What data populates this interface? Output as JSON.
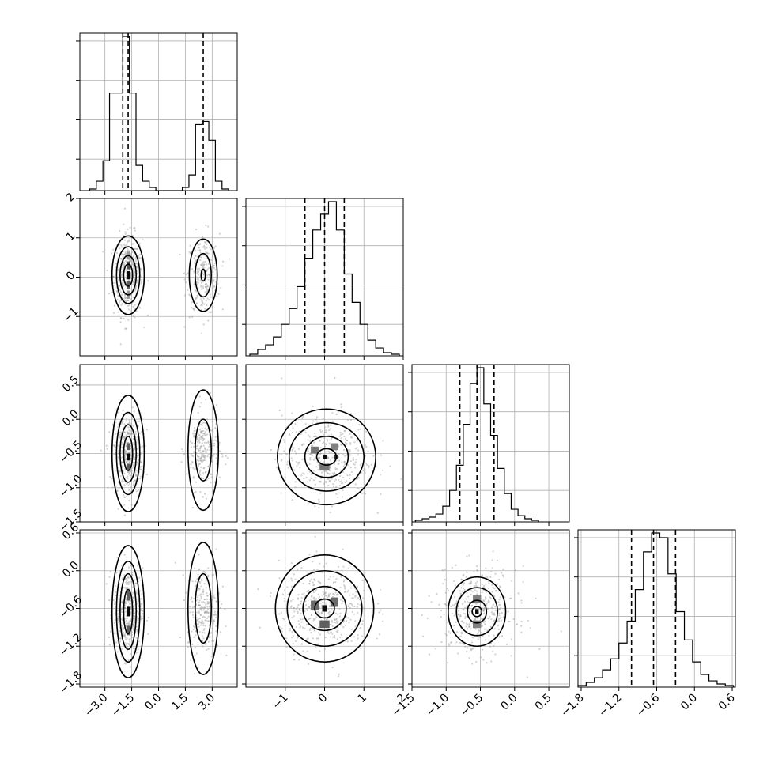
{
  "chart_data": {
    "type": "corner",
    "parameters": 4,
    "grid": true,
    "colors": {
      "frame": "#000000",
      "grid": "#b0b0b0",
      "scatter": "#9a9a9a",
      "contour": "#000000",
      "histogram": "#000000"
    },
    "axes": {
      "p0": {
        "range": [
          -4.4,
          4.4
        ],
        "ticks": [
          -3.0,
          -1.5,
          0.0,
          1.5,
          3.0
        ],
        "tick_labels": [
          "−3.0",
          "−1.5",
          "0.0",
          "1.5",
          "3.0"
        ]
      },
      "p1": {
        "range": [
          -2.0,
          2.0
        ],
        "ticks": [
          -1,
          0,
          1,
          2
        ],
        "tick_labels": [
          "−1",
          "0",
          "1",
          "2"
        ]
      },
      "p2": {
        "range": [
          -1.5,
          0.8
        ],
        "ticks": [
          -1.5,
          -1.0,
          -0.5,
          0.0,
          0.5
        ],
        "tick_labels": [
          "−1.5",
          "−1.0",
          "−0.5",
          "0.0",
          "0.5"
        ]
      },
      "p3": {
        "range": [
          -1.85,
          0.65
        ],
        "ticks": [
          -1.8,
          -1.2,
          -0.6,
          0.0,
          0.6
        ],
        "tick_labels": [
          "−1.8",
          "−1.2",
          "−0.6",
          "0.0",
          "0.6"
        ]
      }
    },
    "quantiles": {
      "p0": [
        -2.0,
        -1.7,
        2.5
      ],
      "p1": [
        -0.5,
        0.0,
        0.5
      ],
      "p2": [
        -0.8,
        -0.55,
        -0.3
      ],
      "p3": [
        -1.0,
        -0.65,
        -0.3
      ]
    },
    "histograms": {
      "p0": [
        {
          "x0": -3.85,
          "x1": -3.48,
          "h": 0.01
        },
        {
          "x0": -3.48,
          "x1": -3.11,
          "h": 0.06
        },
        {
          "x0": -3.11,
          "x1": -2.74,
          "h": 0.19
        },
        {
          "x0": -2.74,
          "x1": -2.37,
          "h": 0.62
        },
        {
          "x0": -2.37,
          "x1": -2.0,
          "h": 0.62
        },
        {
          "x0": -2.0,
          "x1": -1.63,
          "h": 0.98
        },
        {
          "x0": -1.63,
          "x1": -1.26,
          "h": 0.62
        },
        {
          "x0": -1.26,
          "x1": -0.89,
          "h": 0.16
        },
        {
          "x0": -0.89,
          "x1": -0.52,
          "h": 0.06
        },
        {
          "x0": -0.52,
          "x1": -0.15,
          "h": 0.02
        },
        {
          "x0": -0.15,
          "x1": 0.22,
          "h": 0.0
        },
        {
          "x0": 0.22,
          "x1": 0.59,
          "h": 0.0
        },
        {
          "x0": 0.59,
          "x1": 0.96,
          "h": 0.0
        },
        {
          "x0": 0.96,
          "x1": 1.33,
          "h": 0.0
        },
        {
          "x0": 1.33,
          "x1": 1.7,
          "h": 0.02
        },
        {
          "x0": 1.7,
          "x1": 2.07,
          "h": 0.1
        },
        {
          "x0": 2.07,
          "x1": 2.44,
          "h": 0.42
        },
        {
          "x0": 2.44,
          "x1": 2.81,
          "h": 0.44
        },
        {
          "x0": 2.81,
          "x1": 3.18,
          "h": 0.32
        },
        {
          "x0": 3.18,
          "x1": 3.55,
          "h": 0.06
        },
        {
          "x0": 3.55,
          "x1": 3.92,
          "h": 0.01
        }
      ],
      "p1": [
        {
          "x0": -1.9,
          "x1": -1.7,
          "h": 0.01
        },
        {
          "x0": -1.7,
          "x1": -1.5,
          "h": 0.04
        },
        {
          "x0": -1.5,
          "x1": -1.3,
          "h": 0.07
        },
        {
          "x0": -1.3,
          "x1": -1.1,
          "h": 0.12
        },
        {
          "x0": -1.1,
          "x1": -0.9,
          "h": 0.2
        },
        {
          "x0": -0.9,
          "x1": -0.7,
          "h": 0.3
        },
        {
          "x0": -0.7,
          "x1": -0.5,
          "h": 0.44
        },
        {
          "x0": -0.5,
          "x1": -0.3,
          "h": 0.62
        },
        {
          "x0": -0.3,
          "x1": -0.1,
          "h": 0.8
        },
        {
          "x0": -0.1,
          "x1": 0.1,
          "h": 0.9
        },
        {
          "x0": 0.1,
          "x1": 0.3,
          "h": 0.98
        },
        {
          "x0": 0.3,
          "x1": 0.5,
          "h": 0.8
        },
        {
          "x0": 0.5,
          "x1": 0.7,
          "h": 0.52
        },
        {
          "x0": 0.7,
          "x1": 0.9,
          "h": 0.34
        },
        {
          "x0": 0.9,
          "x1": 1.1,
          "h": 0.2
        },
        {
          "x0": 1.1,
          "x1": 1.3,
          "h": 0.1
        },
        {
          "x0": 1.3,
          "x1": 1.5,
          "h": 0.05
        },
        {
          "x0": 1.5,
          "x1": 1.7,
          "h": 0.02
        },
        {
          "x0": 1.7,
          "x1": 1.9,
          "h": 0.01
        }
      ],
      "p2": [
        {
          "x0": -1.45,
          "x1": -1.35,
          "h": 0.01
        },
        {
          "x0": -1.35,
          "x1": -1.25,
          "h": 0.02
        },
        {
          "x0": -1.25,
          "x1": -1.15,
          "h": 0.03
        },
        {
          "x0": -1.15,
          "x1": -1.05,
          "h": 0.05
        },
        {
          "x0": -1.05,
          "x1": -0.95,
          "h": 0.1
        },
        {
          "x0": -0.95,
          "x1": -0.85,
          "h": 0.2
        },
        {
          "x0": -0.85,
          "x1": -0.75,
          "h": 0.36
        },
        {
          "x0": -0.75,
          "x1": -0.65,
          "h": 0.62
        },
        {
          "x0": -0.65,
          "x1": -0.55,
          "h": 0.88
        },
        {
          "x0": -0.55,
          "x1": -0.45,
          "h": 0.98
        },
        {
          "x0": -0.45,
          "x1": -0.35,
          "h": 0.75
        },
        {
          "x0": -0.35,
          "x1": -0.25,
          "h": 0.55
        },
        {
          "x0": -0.25,
          "x1": -0.15,
          "h": 0.34
        },
        {
          "x0": -0.15,
          "x1": -0.05,
          "h": 0.18
        },
        {
          "x0": -0.05,
          "x1": 0.05,
          "h": 0.08
        },
        {
          "x0": 0.05,
          "x1": 0.15,
          "h": 0.04
        },
        {
          "x0": 0.15,
          "x1": 0.25,
          "h": 0.02
        },
        {
          "x0": 0.25,
          "x1": 0.35,
          "h": 0.01
        }
      ],
      "p3": [
        {
          "x0": -1.85,
          "x1": -1.72,
          "h": 0.01
        },
        {
          "x0": -1.72,
          "x1": -1.59,
          "h": 0.03
        },
        {
          "x0": -1.59,
          "x1": -1.46,
          "h": 0.06
        },
        {
          "x0": -1.46,
          "x1": -1.33,
          "h": 0.11
        },
        {
          "x0": -1.33,
          "x1": -1.2,
          "h": 0.18
        },
        {
          "x0": -1.2,
          "x1": -1.07,
          "h": 0.28
        },
        {
          "x0": -1.07,
          "x1": -0.94,
          "h": 0.42
        },
        {
          "x0": -0.94,
          "x1": -0.81,
          "h": 0.62
        },
        {
          "x0": -0.81,
          "x1": -0.68,
          "h": 0.86
        },
        {
          "x0": -0.68,
          "x1": -0.55,
          "h": 0.98
        },
        {
          "x0": -0.55,
          "x1": -0.42,
          "h": 0.95
        },
        {
          "x0": -0.42,
          "x1": -0.29,
          "h": 0.72
        },
        {
          "x0": -0.29,
          "x1": -0.16,
          "h": 0.48
        },
        {
          "x0": -0.16,
          "x1": -0.03,
          "h": 0.3
        },
        {
          "x0": -0.03,
          "x1": 0.1,
          "h": 0.16
        },
        {
          "x0": 0.1,
          "x1": 0.23,
          "h": 0.08
        },
        {
          "x0": 0.23,
          "x1": 0.36,
          "h": 0.04
        },
        {
          "x0": 0.36,
          "x1": 0.49,
          "h": 0.02
        },
        {
          "x0": 0.49,
          "x1": 0.62,
          "h": 0.01
        }
      ]
    },
    "panels": [
      {
        "x": "p0",
        "y": "p1",
        "blobs": [
          {
            "center": [
              -1.7,
              0.05
            ],
            "sd": [
              0.35,
              0.45
            ],
            "levels": [
              [
                0.25,
                0.28
              ],
              [
                0.45,
                0.5
              ],
              [
                0.65,
                0.72
              ],
              [
                0.9,
                1.0
              ]
            ],
            "cells": [
              {
                "c": [
                  -1.7,
                  0.05
                ],
                "s": [
                  0.18,
                  0.2
                ],
                "shade": 0.95
              },
              {
                "c": [
                  -1.7,
                  0.3
                ],
                "s": [
                  0.18,
                  0.2
                ],
                "shade": 0.65
              },
              {
                "c": [
                  -1.7,
                  -0.2
                ],
                "s": [
                  0.18,
                  0.2
                ],
                "shade": 0.6
              },
              {
                "c": [
                  -1.7,
                  0.55
                ],
                "s": [
                  0.18,
                  0.2
                ],
                "shade": 0.35
              },
              {
                "c": [
                  -1.7,
                  -0.45
                ],
                "s": [
                  0.18,
                  0.2
                ],
                "shade": 0.35
              }
            ]
          },
          {
            "center": [
              2.5,
              0.05
            ],
            "sd": [
              0.4,
              0.45
            ],
            "levels": [
              [
                0.12,
                0.15
              ],
              [
                0.45,
                0.55
              ],
              [
                0.78,
                0.92
              ]
            ],
            "cells": []
          }
        ]
      },
      {
        "x": "p0",
        "y": "p2",
        "blobs": [
          {
            "center": [
              -1.7,
              -0.5
            ],
            "sd": [
              0.35,
              0.25
            ],
            "levels": [
              [
                0.25,
                0.25
              ],
              [
                0.45,
                0.42
              ],
              [
                0.65,
                0.6
              ],
              [
                0.9,
                0.85
              ]
            ],
            "cells": [
              {
                "c": [
                  -1.7,
                  -0.55
                ],
                "s": [
                  0.18,
                  0.1
                ],
                "shade": 0.95
              },
              {
                "c": [
                  -1.7,
                  -0.4
                ],
                "s": [
                  0.18,
                  0.1
                ],
                "shade": 0.6
              },
              {
                "c": [
                  -1.7,
                  -0.7
                ],
                "s": [
                  0.18,
                  0.1
                ],
                "shade": 0.6
              }
            ]
          },
          {
            "center": [
              2.5,
              -0.45
            ],
            "sd": [
              0.4,
              0.25
            ],
            "levels": [
              [
                0.45,
                0.45
              ],
              [
                0.85,
                0.88
              ]
            ],
            "cells": []
          }
        ]
      },
      {
        "x": "p0",
        "y": "p3",
        "blobs": [
          {
            "center": [
              -1.7,
              -0.65
            ],
            "sd": [
              0.35,
              0.3
            ],
            "levels": [
              [
                0.25,
                0.35
              ],
              [
                0.45,
                0.6
              ],
              [
                0.65,
                0.8
              ],
              [
                0.9,
                1.05
              ]
            ],
            "cells": [
              {
                "c": [
                  -1.7,
                  -0.65
                ],
                "s": [
                  0.18,
                  0.15
                ],
                "shade": 0.95
              },
              {
                "c": [
                  -1.7,
                  -0.4
                ],
                "s": [
                  0.18,
                  0.15
                ],
                "shade": 0.6
              },
              {
                "c": [
                  -1.7,
                  -0.95
                ],
                "s": [
                  0.18,
                  0.15
                ],
                "shade": 0.6
              }
            ]
          },
          {
            "center": [
              2.5,
              -0.6
            ],
            "sd": [
              0.4,
              0.3
            ],
            "levels": [
              [
                0.45,
                0.55
              ],
              [
                0.85,
                1.05
              ]
            ],
            "cells": []
          }
        ]
      },
      {
        "x": "p1",
        "y": "p2",
        "blobs": [
          {
            "center": [
              0.05,
              -0.55
            ],
            "sd": [
              0.5,
              0.28
            ],
            "levels": [
              [
                0.25,
                0.12
              ],
              [
                0.55,
                0.3
              ],
              [
                0.95,
                0.5
              ],
              [
                1.25,
                0.7
              ]
            ],
            "cells": [
              {
                "c": [
                  0.0,
                  -0.55
                ],
                "s": [
                  0.1,
                  0.05
                ],
                "shade": 0.95
              },
              {
                "c": [
                  0.3,
                  -0.55
                ],
                "s": [
                  0.1,
                  0.05
                ],
                "shade": 0.8
              },
              {
                "c": [
                  -0.25,
                  -0.45
                ],
                "s": [
                  0.2,
                  0.1
                ],
                "shade": 0.5
              },
              {
                "c": [
                  0.25,
                  -0.4
                ],
                "s": [
                  0.2,
                  0.1
                ],
                "shade": 0.45
              },
              {
                "c": [
                  0.0,
                  -0.7
                ],
                "s": [
                  0.25,
                  0.1
                ],
                "shade": 0.5
              }
            ]
          }
        ]
      },
      {
        "x": "p1",
        "y": "p3",
        "blobs": [
          {
            "center": [
              0.0,
              -0.6
            ],
            "sd": [
              0.5,
              0.3
            ],
            "levels": [
              [
                0.25,
                0.15
              ],
              [
                0.55,
                0.35
              ],
              [
                0.95,
                0.6
              ],
              [
                1.25,
                0.85
              ]
            ],
            "cells": [
              {
                "c": [
                  0.0,
                  -0.6
                ],
                "s": [
                  0.12,
                  0.1
                ],
                "shade": 0.95
              },
              {
                "c": [
                  0.25,
                  -0.5
                ],
                "s": [
                  0.2,
                  0.15
                ],
                "shade": 0.55
              },
              {
                "c": [
                  -0.25,
                  -0.55
                ],
                "s": [
                  0.2,
                  0.15
                ],
                "shade": 0.55
              },
              {
                "c": [
                  0.0,
                  -0.85
                ],
                "s": [
                  0.25,
                  0.12
                ],
                "shade": 0.6
              }
            ]
          }
        ]
      },
      {
        "x": "p2",
        "y": "p3",
        "blobs": [
          {
            "center": [
              -0.55,
              -0.65
            ],
            "sd": [
              0.25,
              0.3
            ],
            "levels": [
              [
                0.07,
                0.08
              ],
              [
                0.14,
                0.18
              ],
              [
                0.3,
                0.38
              ],
              [
                0.42,
                0.55
              ]
            ],
            "cells": [
              {
                "c": [
                  -0.55,
                  -0.65
                ],
                "s": [
                  0.05,
                  0.08
                ],
                "shade": 0.95
              },
              {
                "c": [
                  -0.55,
                  -0.45
                ],
                "s": [
                  0.12,
                  0.12
                ],
                "shade": 0.45
              },
              {
                "c": [
                  -0.55,
                  -0.85
                ],
                "s": [
                  0.12,
                  0.12
                ],
                "shade": 0.45
              }
            ]
          }
        ]
      }
    ]
  }
}
